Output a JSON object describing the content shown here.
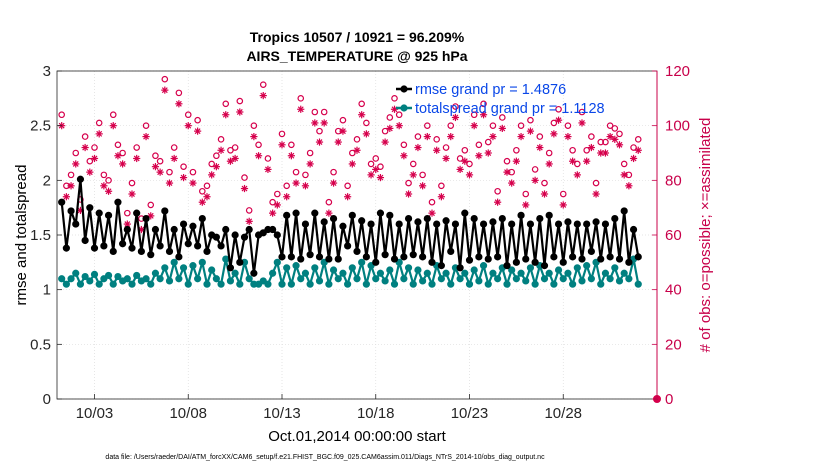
{
  "figure": {
    "title_line1": "Tropics 10507 / 10921 = 96.209%",
    "title_line2": "AIRS_TEMPERATURE @ 925 hPa",
    "footer": "data file: /Users/raeder/DAI/ATM_forcXX/CAM6_setup/f.e21.FHIST_BGC.f09_025.CAM6assim.011/Diags_NTrS_2014-10/obs_diag_output.nc"
  },
  "colors": {
    "rmse": "#000000",
    "spread": "#008080",
    "obs": "#d6004c",
    "legend_text": "#0a47e8"
  },
  "chart_data": {
    "type": "line",
    "xlabel": "Oct.01,2014 00:00:00 start",
    "ylabel_left": "rmse and totalspread",
    "ylabel_right": "# of obs: o=possible; ×=assimilated",
    "xlim": [
      1.0,
      33.0
    ],
    "ylim_left": [
      0,
      3
    ],
    "ylim_right": [
      0,
      120
    ],
    "x_ticks": [
      3,
      8,
      13,
      18,
      23,
      28
    ],
    "x_tick_labels": [
      "10/03",
      "10/08",
      "10/13",
      "10/18",
      "10/23",
      "10/28"
    ],
    "y_ticks_left": [
      0,
      0.5,
      1,
      1.5,
      2,
      2.5,
      3
    ],
    "y_tick_labels_left": [
      "0",
      "0.5",
      "1",
      "1.5",
      "2",
      "2.5",
      "3"
    ],
    "y_ticks_right": [
      0,
      20,
      40,
      60,
      80,
      100,
      120
    ],
    "y_tick_labels_right": [
      "0",
      "20",
      "40",
      "60",
      "80",
      "100",
      "120"
    ],
    "grid": true,
    "legend_position": "top-right",
    "series": [
      {
        "name": "rmse grand pr = 1.4876",
        "axis": "left",
        "marker": "filled-circle",
        "values": [
          1.8,
          1.38,
          1.72,
          1.6,
          2.01,
          1.45,
          1.75,
          1.38,
          1.7,
          1.4,
          1.68,
          1.35,
          1.8,
          1.42,
          1.55,
          1.38,
          1.7,
          1.35,
          1.65,
          1.32,
          1.55,
          1.4,
          1.72,
          1.35,
          1.55,
          1.3,
          1.6,
          1.42,
          1.58,
          1.4,
          1.65,
          1.35,
          1.5,
          1.48,
          1.4,
          1.55,
          1.2,
          1.5,
          1.25,
          1.48,
          1.55,
          1.15,
          1.5,
          1.52,
          1.55,
          1.55,
          1.5,
          1.3,
          1.68,
          1.3,
          1.7,
          1.28,
          1.6,
          1.32,
          1.7,
          1.3,
          1.62,
          1.28,
          1.65,
          1.28,
          1.58,
          1.4,
          1.68,
          1.35,
          1.63,
          1.3,
          1.6,
          1.25,
          1.7,
          1.32,
          1.68,
          1.28,
          1.6,
          1.3,
          1.65,
          1.32,
          1.62,
          1.3,
          1.65,
          1.25,
          1.6,
          1.22,
          1.63,
          1.35,
          1.6,
          1.2,
          1.7,
          1.27,
          1.65,
          1.3,
          1.6,
          1.28,
          1.62,
          1.3,
          1.65,
          1.22,
          1.6,
          1.25,
          1.68,
          1.28,
          1.6,
          1.25,
          1.65,
          1.22,
          1.68,
          1.3,
          1.6,
          1.25,
          1.62,
          1.3,
          1.6,
          1.28,
          1.6,
          1.35,
          1.62,
          1.28,
          1.6,
          1.3,
          1.65,
          1.28,
          1.72,
          1.25,
          1.55,
          1.3
        ]
      },
      {
        "name": "totalspread grand pr = 1.1128",
        "axis": "left",
        "marker": "filled-circle",
        "values": [
          1.1,
          1.05,
          1.1,
          1.15,
          1.05,
          1.12,
          1.08,
          1.14,
          1.05,
          1.1,
          1.13,
          1.05,
          1.12,
          1.08,
          1.1,
          1.05,
          1.13,
          1.08,
          1.1,
          1.05,
          1.15,
          1.1,
          1.2,
          1.08,
          1.25,
          1.1,
          1.2,
          1.05,
          1.22,
          1.1,
          1.25,
          1.05,
          1.18,
          1.1,
          1.05,
          1.28,
          1.08,
          1.15,
          1.05,
          1.25,
          1.1,
          1.05,
          1.05,
          1.08,
          1.05,
          1.15,
          1.25,
          1.05,
          1.2,
          1.05,
          1.22,
          1.1,
          1.15,
          1.05,
          1.2,
          1.08,
          1.25,
          1.05,
          1.18,
          1.1,
          1.15,
          1.05,
          1.2,
          1.1,
          1.25,
          1.05,
          1.22,
          1.1,
          1.15,
          1.08,
          1.18,
          1.05,
          1.25,
          1.1,
          1.2,
          1.05,
          1.18,
          1.08,
          1.15,
          1.05,
          1.22,
          1.1,
          1.15,
          1.05,
          1.2,
          1.1,
          1.15,
          1.05,
          1.18,
          1.08,
          1.22,
          1.05,
          1.15,
          1.1,
          1.2,
          1.05,
          1.18,
          1.1,
          1.15,
          1.08,
          1.2,
          1.05,
          1.22,
          1.1,
          1.15,
          1.05,
          1.18,
          1.1,
          1.15,
          1.05,
          1.2,
          1.08,
          1.22,
          1.1,
          1.25,
          1.05,
          1.15,
          1.1,
          1.2,
          1.08,
          1.15,
          1.1,
          1.28,
          1.05
        ]
      },
      {
        "name": "possible",
        "axis": "right",
        "marker": "open-circle",
        "values": [
          104,
          78,
          82,
          90,
          73,
          96,
          87,
          92,
          101,
          82,
          80,
          104,
          93,
          90,
          68,
          79,
          92,
          66,
          100,
          71,
          89,
          87,
          117,
          83,
          92,
          112,
          85,
          104,
          83,
          102,
          76,
          78,
          86,
          89,
          95,
          108,
          91,
          92,
          109,
          81,
          69,
          100,
          93,
          115,
          88,
          72,
          75,
          97,
          78,
          93,
          83,
          110,
          82,
          90,
          105,
          98,
          105,
          72,
          83,
          98,
          102,
          78,
          90,
          95,
          108,
          101,
          86,
          88,
          85,
          98,
          103,
          110,
          104,
          93,
          79,
          86,
          96,
          82,
          100,
          72,
          95,
          78,
          92,
          100,
          107,
          88,
          91,
          86,
          104,
          93,
          108,
          94,
          100,
          76,
          103,
          87,
          83,
          91,
          100,
          75,
          102,
          84,
          96,
          79,
          90,
          101,
          106,
          75,
          100,
          91,
          86,
          105,
          91,
          96,
          79,
          94,
          94,
          100,
          99,
          97,
          86,
          82,
          92,
          95
        ]
      },
      {
        "name": "assimilated",
        "axis": "right",
        "marker": "asterisk",
        "values": [
          100,
          74,
          78,
          86,
          69,
          92,
          83,
          88,
          97,
          78,
          76,
          100,
          89,
          86,
          64,
          75,
          88,
          62,
          96,
          67,
          85,
          83,
          113,
          79,
          88,
          108,
          81,
          100,
          79,
          98,
          72,
          74,
          82,
          85,
          91,
          104,
          87,
          88,
          105,
          77,
          65,
          96,
          89,
          111,
          84,
          68,
          71,
          93,
          74,
          89,
          79,
          106,
          78,
          86,
          101,
          94,
          101,
          68,
          79,
          94,
          98,
          74,
          86,
          91,
          104,
          97,
          82,
          84,
          81,
          94,
          99,
          106,
          100,
          89,
          75,
          82,
          92,
          78,
          96,
          68,
          91,
          74,
          88,
          96,
          103,
          84,
          87,
          82,
          100,
          89,
          104,
          90,
          96,
          72,
          99,
          83,
          79,
          87,
          96,
          71,
          98,
          80,
          92,
          75,
          86,
          97,
          102,
          71,
          96,
          87,
          82,
          101,
          87,
          92,
          75,
          90,
          90,
          96,
          95,
          93,
          82,
          78,
          88,
          91
        ]
      }
    ]
  }
}
